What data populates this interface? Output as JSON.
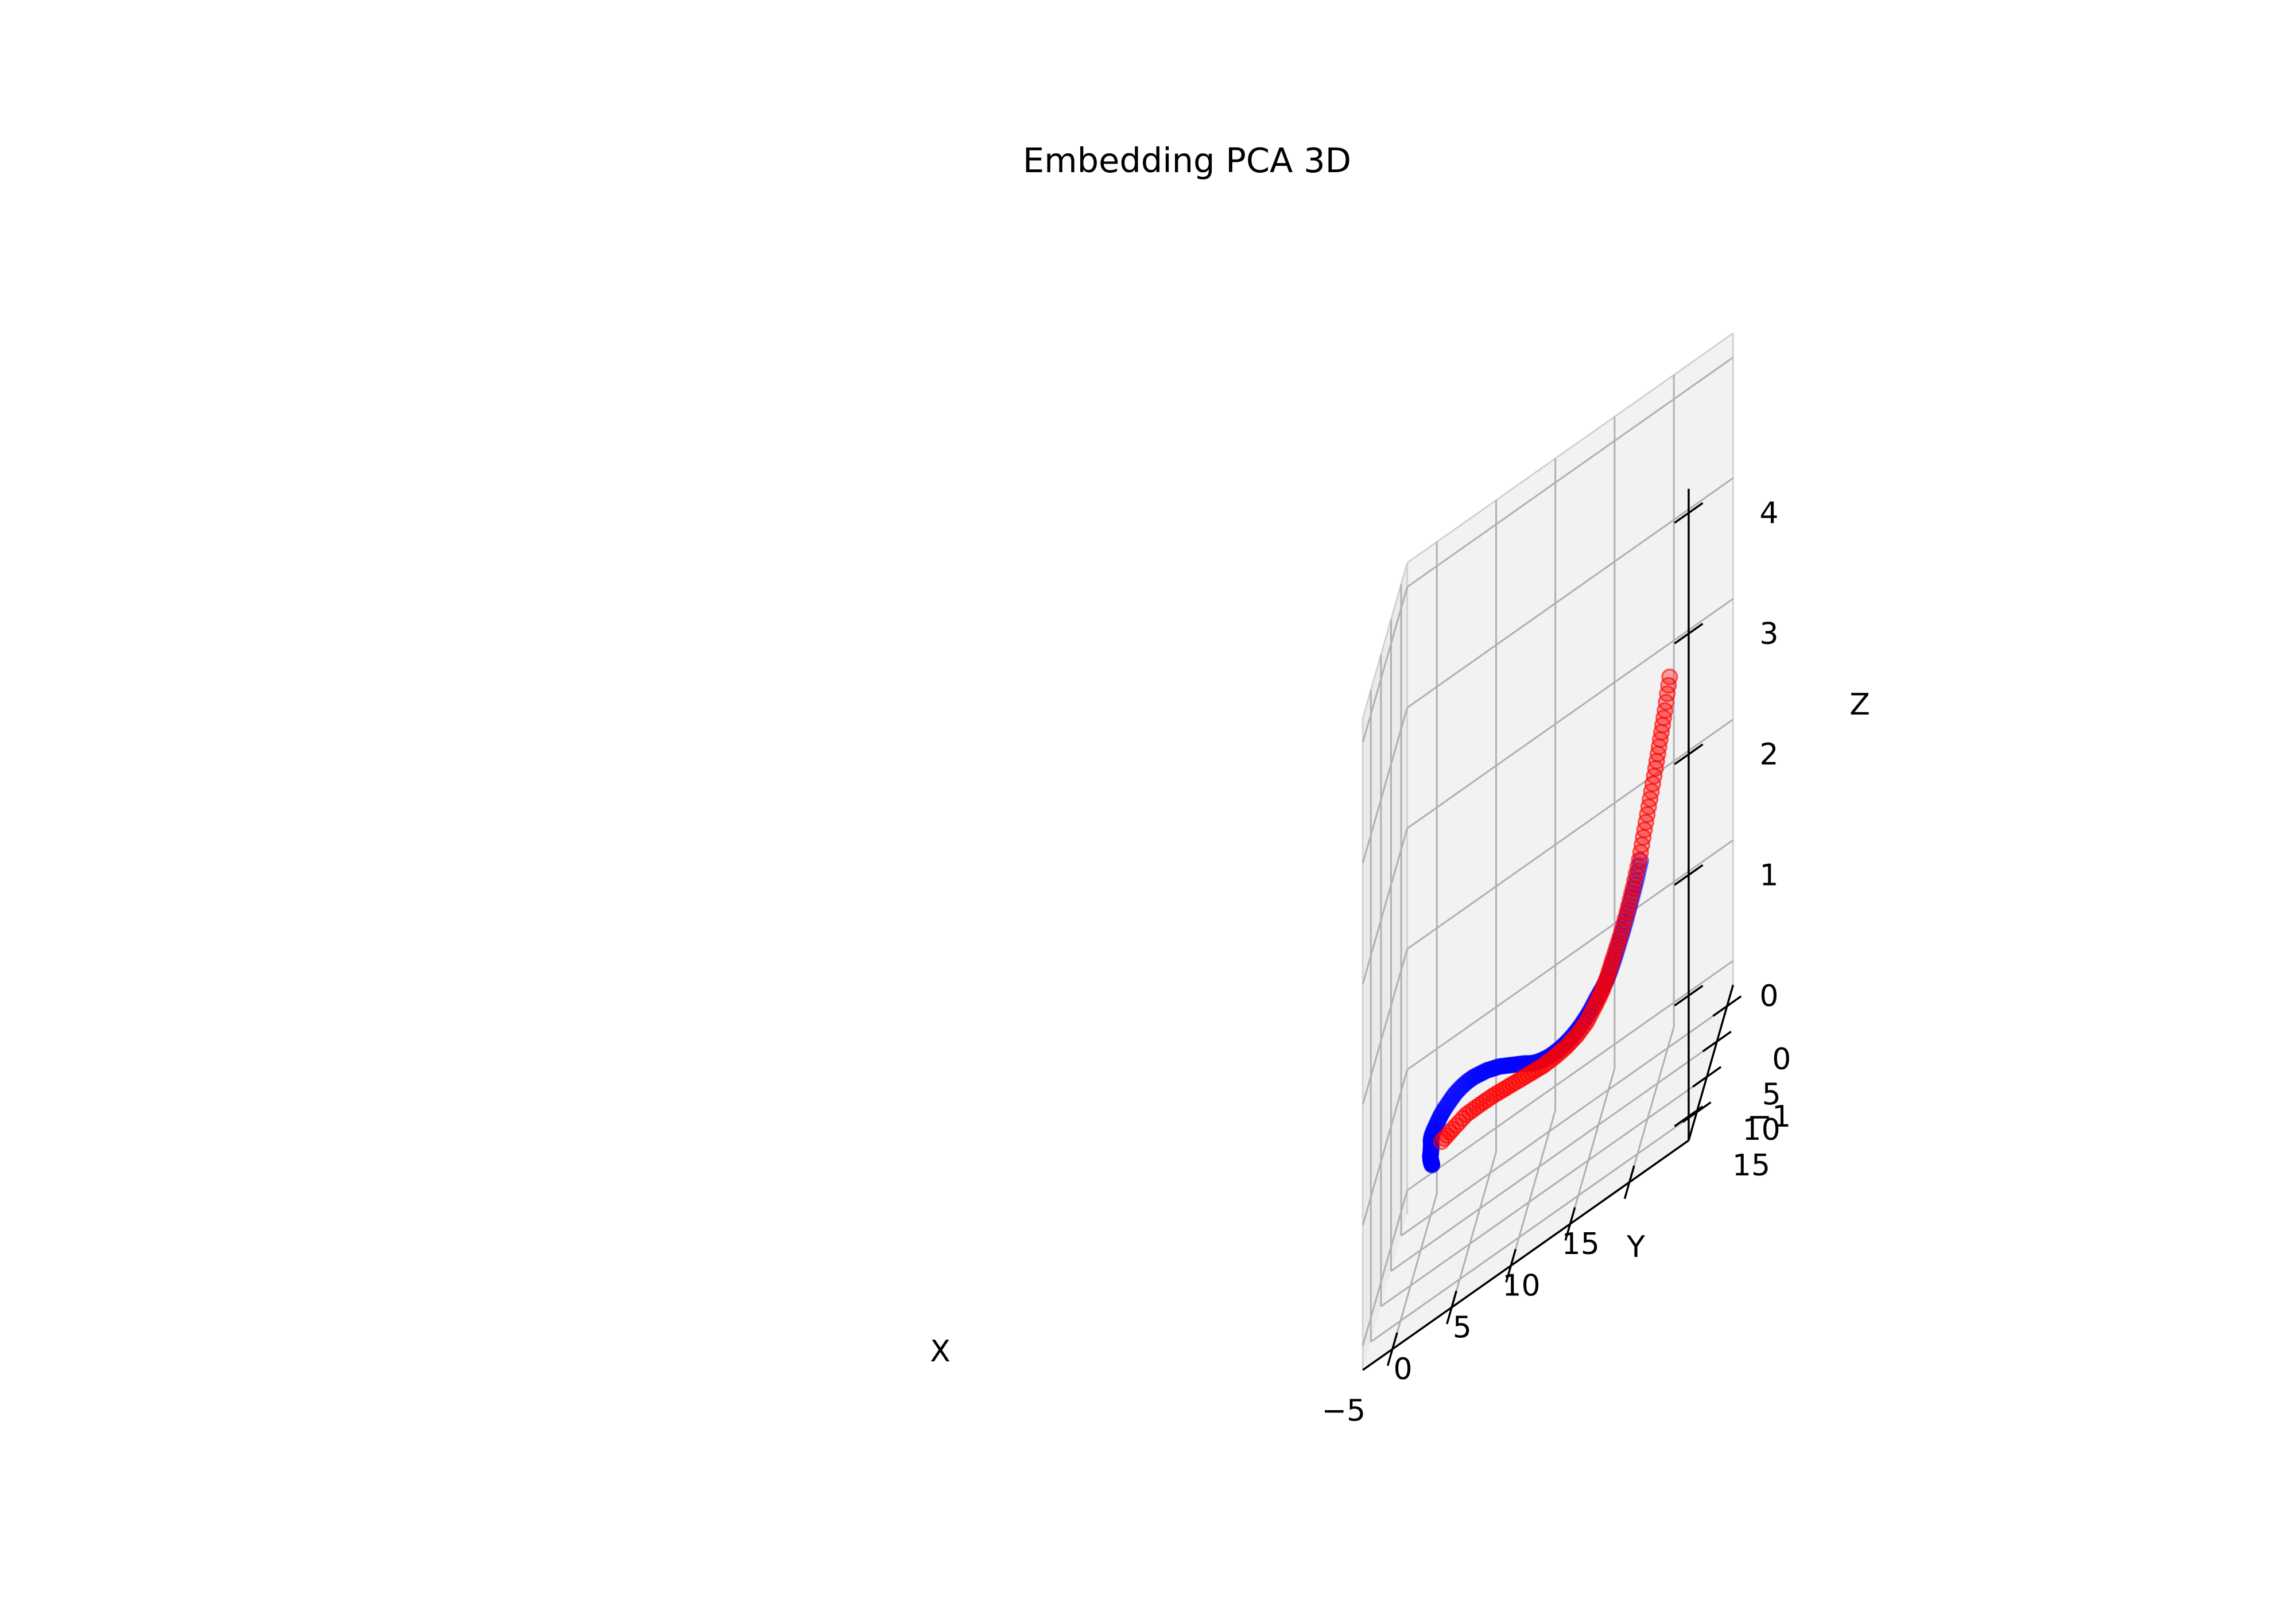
{
  "chart_data": {
    "type": "scatter",
    "projection": "3d",
    "title": "Embedding PCA 3D",
    "xlabel": "X",
    "ylabel": "Y",
    "zlabel": "Z",
    "xlim": [
      -7.5,
      20
    ],
    "ylim": [
      -3,
      19
    ],
    "zlim": [
      -1.2,
      4.2
    ],
    "xticks": [
      -5,
      0,
      5,
      10,
      15
    ],
    "yticks": [
      0,
      5,
      10,
      15
    ],
    "zticks": [
      -1,
      0,
      1,
      2,
      3,
      4
    ],
    "xtick_labels": [
      "−5",
      "0",
      "5",
      "10",
      "15"
    ],
    "ytick_labels": [
      "0",
      "5",
      "10",
      "15"
    ],
    "ztick_labels": [
      "−1",
      "0",
      "1",
      "2",
      "3",
      "4"
    ],
    "grid": true,
    "series": [
      {
        "name": "blue",
        "color": "#0000ff",
        "alpha": 0.25,
        "points": [
          [
            -2.0,
            17.0,
            0.0
          ],
          [
            -2.2,
            16.0,
            -0.03
          ],
          [
            -2.4,
            15.0,
            -0.07
          ],
          [
            -2.6,
            14.0,
            -0.1
          ],
          [
            -2.8,
            13.0,
            -0.13
          ],
          [
            -3.0,
            12.0,
            -0.15
          ],
          [
            -3.1,
            11.2,
            -0.17
          ],
          [
            -3.2,
            10.5,
            -0.18
          ],
          [
            -3.3,
            9.8,
            -0.19
          ],
          [
            -3.4,
            9.2,
            -0.2
          ],
          [
            -3.5,
            8.6,
            -0.2
          ],
          [
            -3.6,
            8.1,
            -0.2
          ],
          [
            -3.6,
            7.6,
            -0.19
          ],
          [
            -3.5,
            7.1,
            -0.18
          ],
          [
            -3.3,
            6.7,
            -0.16
          ],
          [
            -3.1,
            6.3,
            -0.14
          ],
          [
            -2.8,
            6.0,
            -0.12
          ],
          [
            -2.4,
            5.7,
            -0.1
          ],
          [
            -2.0,
            5.5,
            -0.08
          ],
          [
            -1.5,
            5.3,
            -0.07
          ],
          [
            -1.0,
            5.1,
            -0.07
          ],
          [
            -0.5,
            4.9,
            -0.08
          ],
          [
            0.0,
            4.7,
            -0.1
          ],
          [
            0.5,
            4.5,
            -0.12
          ],
          [
            1.0,
            4.3,
            -0.15
          ],
          [
            1.5,
            4.1,
            -0.18
          ],
          [
            2.0,
            3.9,
            -0.22
          ],
          [
            2.5,
            3.7,
            -0.26
          ],
          [
            3.0,
            3.5,
            -0.3
          ],
          [
            3.5,
            3.3,
            -0.34
          ],
          [
            4.0,
            3.2,
            -0.38
          ],
          [
            4.5,
            3.1,
            -0.41
          ],
          [
            5.0,
            3.0,
            -0.43
          ],
          [
            5.5,
            3.0,
            -0.44
          ],
          [
            6.0,
            3.0,
            -0.44
          ],
          [
            6.5,
            3.1,
            -0.43
          ],
          [
            7.0,
            3.3,
            -0.41
          ],
          [
            7.5,
            3.6,
            -0.38
          ],
          [
            8.0,
            4.0,
            -0.34
          ],
          [
            8.5,
            4.5,
            -0.29
          ],
          [
            9.0,
            5.1,
            -0.23
          ],
          [
            9.5,
            5.8,
            -0.16
          ],
          [
            10.0,
            6.6,
            -0.08
          ],
          [
            10.5,
            7.5,
            0.0
          ],
          [
            11.0,
            8.5,
            0.08
          ],
          [
            11.5,
            9.5,
            0.17
          ],
          [
            12.0,
            10.5,
            0.28
          ],
          [
            12.5,
            11.4,
            0.4
          ],
          [
            13.0,
            12.3,
            0.53
          ],
          [
            13.5,
            13.2,
            0.66
          ],
          [
            14.0,
            14.0,
            0.8
          ],
          [
            14.5,
            14.8,
            0.95
          ],
          [
            15.0,
            15.6,
            1.1
          ],
          [
            15.5,
            16.3,
            1.27
          ]
        ]
      },
      {
        "name": "red",
        "color": "#ff0000",
        "alpha": 0.35,
        "points": [
          [
            -2.8,
            7.6,
            -0.3
          ],
          [
            -2.0,
            6.8,
            -0.3
          ],
          [
            -1.0,
            5.9,
            -0.3
          ],
          [
            0.0,
            5.0,
            -0.34
          ],
          [
            1.0,
            4.2,
            -0.38
          ],
          [
            2.0,
            3.6,
            -0.42
          ],
          [
            3.0,
            3.2,
            -0.45
          ],
          [
            4.0,
            3.0,
            -0.47
          ],
          [
            5.0,
            3.0,
            -0.48
          ],
          [
            6.0,
            3.1,
            -0.47
          ],
          [
            7.0,
            3.4,
            -0.44
          ],
          [
            8.0,
            4.0,
            -0.38
          ],
          [
            9.0,
            5.0,
            -0.28
          ],
          [
            10.0,
            6.5,
            -0.12
          ],
          [
            10.8,
            7.8,
            0.02
          ],
          [
            11.5,
            9.2,
            0.18
          ],
          [
            12.2,
            10.6,
            0.36
          ],
          [
            13.0,
            12.0,
            0.56
          ],
          [
            13.8,
            13.2,
            0.78
          ],
          [
            14.5,
            14.3,
            1.0
          ],
          [
            15.2,
            15.3,
            1.24
          ],
          [
            15.8,
            16.2,
            1.5
          ],
          [
            16.4,
            17.0,
            1.76
          ],
          [
            17.0,
            17.8,
            2.02
          ],
          [
            17.5,
            18.4,
            2.26
          ],
          [
            18.0,
            19.0,
            2.5
          ],
          [
            18.5,
            19.6,
            2.78
          ]
        ]
      }
    ]
  }
}
